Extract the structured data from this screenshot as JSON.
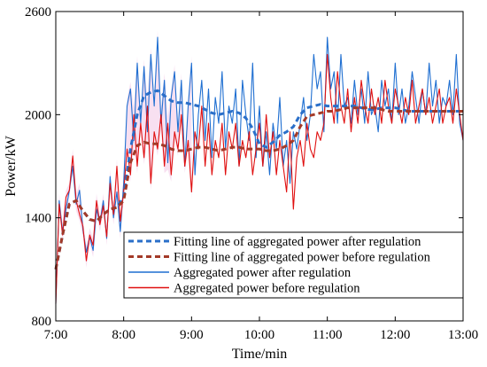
{
  "chart_data": {
    "type": "line",
    "title": "",
    "xlabel": "Time/min",
    "ylabel": "Power/kW",
    "xlim": [
      0,
      360
    ],
    "ylim": [
      800,
      2600
    ],
    "x_ticks": [
      0,
      60,
      120,
      180,
      240,
      300,
      360
    ],
    "x_tick_labels": [
      "7:00",
      "8:00",
      "9:00",
      "10:00",
      "11:00",
      "12:00",
      "13:00"
    ],
    "y_ticks": [
      800,
      1400,
      2000,
      2600
    ],
    "y_tick_labels": [
      "800",
      "1400",
      "2000",
      "2600"
    ],
    "grid": false,
    "legend_position": "bottom-left",
    "colors": {
      "fit_after": "#2a6fc9",
      "fit_before": "#a33a28",
      "agg_after": "#1f6fd1",
      "agg_before": "#e01010",
      "band": "#f3c6e6"
    },
    "series": [
      {
        "name": "Fitting line of aggregated power after regulation",
        "style": "dashed",
        "x": [
          0,
          6,
          12,
          18,
          24,
          30,
          36,
          42,
          48,
          54,
          60,
          66,
          72,
          78,
          84,
          90,
          96,
          102,
          108,
          114,
          120,
          126,
          132,
          138,
          144,
          150,
          156,
          162,
          168,
          174,
          180,
          186,
          192,
          198,
          204,
          210,
          216,
          222,
          228,
          234,
          240,
          246,
          252,
          258,
          264,
          270,
          276,
          282,
          288,
          294,
          300,
          306,
          312,
          318,
          324,
          330,
          336,
          342,
          348,
          354,
          360
        ],
        "values": [
          1100,
          1300,
          1480,
          1500,
          1440,
          1390,
          1380,
          1420,
          1450,
          1460,
          1520,
          1800,
          2000,
          2110,
          2130,
          2140,
          2110,
          2080,
          2070,
          2070,
          2060,
          2050,
          2030,
          2010,
          2000,
          2010,
          2020,
          2010,
          1980,
          1920,
          1830,
          1810,
          1840,
          1880,
          1900,
          1930,
          2000,
          2040,
          2050,
          2060,
          2050,
          2050,
          2050,
          2050,
          2050,
          2040,
          2030,
          2030,
          2040,
          2040,
          2040,
          2030,
          2020,
          2020,
          2020,
          2020,
          2020,
          2020,
          2020,
          2020,
          2020
        ]
      },
      {
        "name": "Fitting line of aggregated power before regulation",
        "style": "dashed",
        "x": [
          0,
          6,
          12,
          18,
          24,
          30,
          36,
          42,
          48,
          54,
          60,
          66,
          72,
          78,
          84,
          90,
          96,
          102,
          108,
          114,
          120,
          126,
          132,
          138,
          144,
          150,
          156,
          162,
          168,
          174,
          180,
          186,
          192,
          198,
          204,
          210,
          216,
          222,
          228,
          234,
          240,
          246,
          252,
          258,
          264,
          270,
          276,
          282,
          288,
          294,
          300,
          306,
          312,
          318,
          324,
          330,
          336,
          342,
          348,
          354,
          360
        ],
        "values": [
          1100,
          1300,
          1480,
          1500,
          1440,
          1390,
          1380,
          1420,
          1450,
          1460,
          1500,
          1720,
          1820,
          1840,
          1830,
          1830,
          1820,
          1800,
          1790,
          1790,
          1800,
          1810,
          1810,
          1800,
          1790,
          1800,
          1810,
          1810,
          1800,
          1800,
          1800,
          1790,
          1790,
          1800,
          1820,
          1850,
          1930,
          1990,
          2000,
          2010,
          2020,
          2020,
          2030,
          2040,
          2040,
          2040,
          2040,
          2040,
          2030,
          2020,
          2020,
          2020,
          2020,
          2020,
          2020,
          2020,
          2020,
          2020,
          2020,
          2020,
          2020
        ]
      },
      {
        "name": "Aggregated power after regulation",
        "style": "solid",
        "x": [
          0,
          3,
          6,
          9,
          12,
          15,
          18,
          21,
          24,
          27,
          30,
          33,
          36,
          39,
          42,
          45,
          48,
          51,
          54,
          57,
          60,
          63,
          66,
          69,
          72,
          75,
          78,
          81,
          84,
          87,
          90,
          93,
          96,
          99,
          102,
          105,
          108,
          111,
          114,
          117,
          120,
          123,
          126,
          129,
          132,
          135,
          138,
          141,
          144,
          147,
          150,
          153,
          156,
          159,
          162,
          165,
          168,
          171,
          174,
          177,
          180,
          183,
          186,
          189,
          192,
          195,
          198,
          201,
          204,
          207,
          210,
          213,
          216,
          219,
          222,
          225,
          228,
          231,
          234,
          237,
          240,
          243,
          246,
          249,
          252,
          255,
          258,
          261,
          264,
          267,
          270,
          273,
          276,
          279,
          282,
          285,
          288,
          291,
          294,
          297,
          300,
          303,
          306,
          309,
          312,
          315,
          318,
          321,
          324,
          327,
          330,
          333,
          336,
          339,
          342,
          345,
          348,
          351,
          354,
          357,
          360
        ],
        "values": [
          900,
          1500,
          1320,
          1450,
          1560,
          1700,
          1480,
          1560,
          1330,
          1200,
          1290,
          1210,
          1450,
          1370,
          1500,
          1280,
          1640,
          1400,
          1550,
          1320,
          1600,
          2050,
          2150,
          1850,
          2300,
          1950,
          2280,
          1900,
          2350,
          2050,
          2450,
          1950,
          2200,
          1720,
          2100,
          2250,
          1900,
          2200,
          1700,
          2050,
          2300,
          1650,
          2000,
          2200,
          1850,
          2150,
          1750,
          2100,
          1950,
          2250,
          1800,
          2050,
          1950,
          2150,
          1700,
          2200,
          2000,
          1850,
          2300,
          1750,
          2050,
          1700,
          1900,
          1650,
          1950,
          1800,
          2100,
          1700,
          1850,
          1600,
          1900,
          1800,
          1950,
          2100,
          1850,
          2000,
          2350,
          2150,
          2250,
          1900,
          2450,
          2150,
          2250,
          1950,
          2350,
          2050,
          2100,
          1950,
          2200,
          2000,
          2150,
          1950,
          2250,
          2000,
          2050,
          1900,
          2200,
          2050,
          2150,
          1950,
          2300,
          2000,
          2150,
          1950,
          2050,
          2250,
          2100,
          1950,
          2150,
          2000,
          2300,
          2050,
          2200,
          1950,
          2100,
          2050,
          2200,
          2000,
          2350,
          1950,
          1850
        ]
      },
      {
        "name": "Aggregated power before regulation",
        "style": "solid",
        "x": [
          0,
          3,
          6,
          9,
          12,
          15,
          18,
          21,
          24,
          27,
          30,
          33,
          36,
          39,
          42,
          45,
          48,
          51,
          54,
          57,
          60,
          63,
          66,
          69,
          72,
          75,
          78,
          81,
          84,
          87,
          90,
          93,
          96,
          99,
          102,
          105,
          108,
          111,
          114,
          117,
          120,
          123,
          126,
          129,
          132,
          135,
          138,
          141,
          144,
          147,
          150,
          153,
          156,
          159,
          162,
          165,
          168,
          171,
          174,
          177,
          180,
          183,
          186,
          189,
          192,
          195,
          198,
          201,
          204,
          207,
          210,
          213,
          216,
          219,
          222,
          225,
          228,
          231,
          234,
          237,
          240,
          243,
          246,
          249,
          252,
          255,
          258,
          261,
          264,
          267,
          270,
          273,
          276,
          279,
          282,
          285,
          288,
          291,
          294,
          297,
          300,
          303,
          306,
          309,
          312,
          315,
          318,
          321,
          324,
          327,
          330,
          333,
          336,
          339,
          342,
          345,
          348,
          351,
          354,
          357,
          360
        ],
        "values": [
          900,
          1480,
          1300,
          1520,
          1560,
          1760,
          1500,
          1420,
          1350,
          1150,
          1300,
          1240,
          1500,
          1360,
          1470,
          1290,
          1600,
          1420,
          1700,
          1380,
          1550,
          1800,
          1650,
          2000,
          1700,
          1950,
          1750,
          2050,
          1600,
          1900,
          1800,
          2000,
          1700,
          1950,
          1650,
          1900,
          1800,
          2000,
          1700,
          1850,
          1550,
          1900,
          1800,
          2050,
          1700,
          1950,
          1650,
          1850,
          1750,
          1950,
          1650,
          1900,
          1800,
          1950,
          1700,
          1850,
          1750,
          1900,
          1650,
          1800,
          1950,
          1700,
          2000,
          1750,
          1900,
          1650,
          1850,
          1700,
          1550,
          1900,
          1450,
          1750,
          1850,
          1700,
          1950,
          1800,
          1750,
          1900,
          1850,
          1950,
          2350,
          2100,
          1950,
          2250,
          2050,
          1950,
          2150,
          1900,
          2100,
          1950,
          2200,
          2050,
          1950,
          2150,
          2000,
          2100,
          1950,
          2200,
          2050,
          1950,
          2150,
          2050,
          1950,
          2100,
          2000,
          2200,
          1950,
          2050,
          2150,
          2000,
          2100,
          1950,
          2050,
          2150,
          1950,
          2050,
          2100,
          1950,
          2150,
          2000,
          1850
        ]
      }
    ]
  }
}
